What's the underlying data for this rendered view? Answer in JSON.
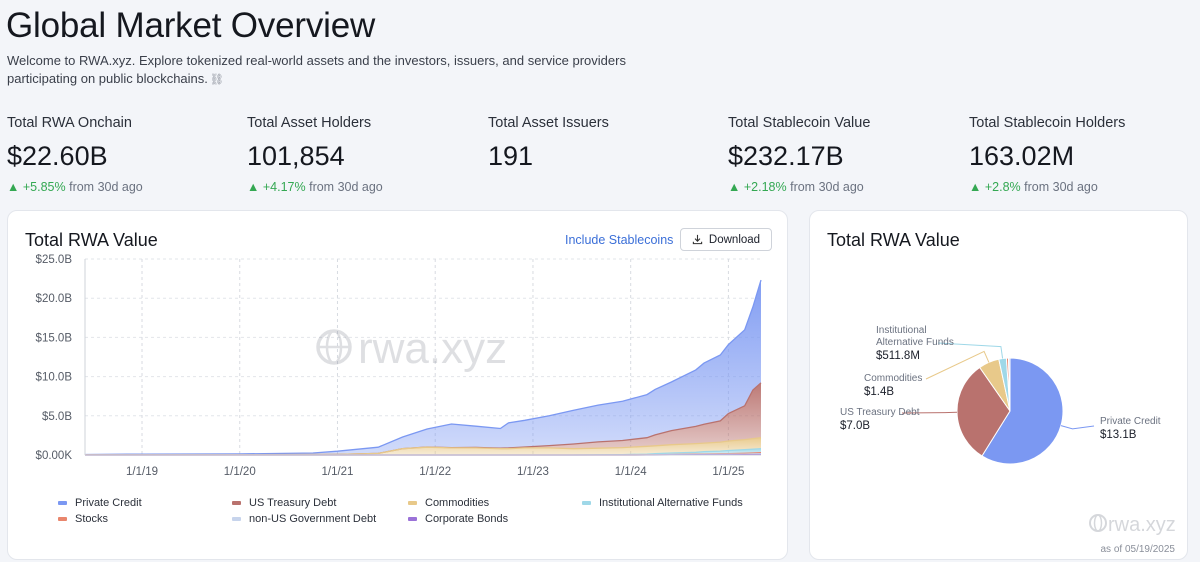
{
  "header": {
    "title": "Global Market Overview",
    "intro": "Welcome to RWA.xyz. Explore tokenized real-world assets and the investors, issuers, and service providers participating on public blockchains."
  },
  "stats": [
    {
      "label": "Total RWA Onchain",
      "value": "$22.60B",
      "change": "+5.85%",
      "suffix": "from 30d ago"
    },
    {
      "label": "Total Asset Holders",
      "value": "101,854",
      "change": "+4.17%",
      "suffix": "from 30d ago"
    },
    {
      "label": "Total Asset Issuers",
      "value": "191",
      "change": "",
      "suffix": ""
    },
    {
      "label": "Total Stablecoin Value",
      "value": "$232.17B",
      "change": "+2.18%",
      "suffix": "from 30d ago"
    },
    {
      "label": "Total Stablecoin Holders",
      "value": "163.02M",
      "change": "+2.8%",
      "suffix": "from 30d ago"
    }
  ],
  "area_card": {
    "title": "Total RWA Value",
    "include_label": "Include Stablecoins",
    "download_label": "Download",
    "watermark": "rwa.xyz"
  },
  "pie_card": {
    "title": "Total RWA Value",
    "watermark": "rwa.xyz",
    "as_of": "as of 05/19/2025"
  },
  "colors": {
    "private_credit": "#7b98f2",
    "us_treasury": "#b9726e",
    "commodities": "#e8c98a",
    "alt_funds": "#9fd8e8",
    "stocks": "#e9866d",
    "non_us_gov": "#c7d4ec",
    "corp_bonds": "#9b72d8",
    "up": "#34a853"
  },
  "chart_data": [
    {
      "type": "area",
      "title": "Total RWA Value",
      "stacked": true,
      "y_ticks": [
        "$0.00K",
        "$5.0B",
        "$10.0B",
        "$15.0B",
        "$20.0B",
        "$25.0B"
      ],
      "ylim": [
        0,
        25
      ],
      "x_ticks": [
        "1/1/19",
        "1/1/20",
        "1/1/21",
        "1/1/22",
        "1/1/23",
        "1/1/24",
        "1/1/25"
      ],
      "x": [
        "2018-06",
        "2019-01",
        "2020-01",
        "2020-10",
        "2021-01",
        "2021-06",
        "2021-09",
        "2021-12",
        "2022-03",
        "2022-06",
        "2022-09",
        "2022-10",
        "2022-12",
        "2023-03",
        "2023-06",
        "2023-09",
        "2023-12",
        "2024-03",
        "2024-04",
        "2024-06",
        "2024-09",
        "2024-10",
        "2024-12",
        "2025-01",
        "2025-03",
        "2025-04",
        "2025-05"
      ],
      "grid": true,
      "legend": "bottom",
      "series": [
        {
          "name": "Private Credit",
          "color": "#7b98f2",
          "values": [
            0.05,
            0.08,
            0.1,
            0.2,
            0.4,
            0.8,
            1.5,
            2.3,
            3.0,
            2.7,
            2.5,
            3.2,
            3.4,
            3.8,
            4.3,
            4.7,
            5.0,
            5.5,
            5.8,
            6.2,
            7.2,
            7.8,
            8.4,
            8.8,
            9.7,
            10.6,
            13.1
          ]
        },
        {
          "name": "US Treasury Debt",
          "color": "#b9726e",
          "values": [
            0,
            0,
            0,
            0,
            0,
            0,
            0,
            0.02,
            0.05,
            0.07,
            0.08,
            0.1,
            0.12,
            0.3,
            0.6,
            0.8,
            0.9,
            1.1,
            1.4,
            1.8,
            2.2,
            2.4,
            2.7,
            3.5,
            4.3,
            6.2,
            7.0
          ]
        },
        {
          "name": "Commodities",
          "color": "#e8c98a",
          "values": [
            0.02,
            0.03,
            0.04,
            0.06,
            0.08,
            0.2,
            0.8,
            1.0,
            0.9,
            0.9,
            0.8,
            0.8,
            0.9,
            0.9,
            0.8,
            0.85,
            0.9,
            1.0,
            1.0,
            1.05,
            1.1,
            1.1,
            1.15,
            1.2,
            1.3,
            1.35,
            1.4
          ]
        },
        {
          "name": "Institutional Alternative Funds",
          "color": "#9fd8e8",
          "values": [
            0,
            0,
            0,
            0,
            0,
            0,
            0,
            0,
            0,
            0,
            0,
            0,
            0,
            0,
            0,
            0.02,
            0.05,
            0.1,
            0.15,
            0.2,
            0.25,
            0.3,
            0.35,
            0.4,
            0.45,
            0.48,
            0.51
          ]
        },
        {
          "name": "Stocks",
          "color": "#e9866d",
          "values": [
            0,
            0,
            0,
            0,
            0,
            0,
            0,
            0,
            0,
            0,
            0,
            0,
            0,
            0,
            0,
            0,
            0,
            0,
            0,
            0.02,
            0.04,
            0.05,
            0.06,
            0.08,
            0.1,
            0.12,
            0.14
          ]
        },
        {
          "name": "non-US Government Debt",
          "color": "#c7d4ec",
          "values": [
            0,
            0,
            0,
            0,
            0,
            0,
            0,
            0,
            0,
            0,
            0,
            0,
            0,
            0,
            0,
            0,
            0,
            0.01,
            0.02,
            0.03,
            0.04,
            0.05,
            0.06,
            0.07,
            0.08,
            0.09,
            0.1
          ]
        },
        {
          "name": "Corporate Bonds",
          "color": "#9b72d8",
          "values": [
            0,
            0,
            0,
            0,
            0,
            0,
            0,
            0,
            0,
            0,
            0,
            0,
            0,
            0,
            0,
            0,
            0,
            0,
            0,
            0.01,
            0.02,
            0.02,
            0.03,
            0.03,
            0.04,
            0.05,
            0.06
          ]
        }
      ]
    },
    {
      "type": "pie",
      "title": "Total RWA Value",
      "slices": [
        {
          "name": "Private Credit",
          "label": "$13.1B",
          "value": 13.1,
          "color": "#7b98f2"
        },
        {
          "name": "US Treasury Debt",
          "label": "$7.0B",
          "value": 7.0,
          "color": "#b9726e"
        },
        {
          "name": "Commodities",
          "label": "$1.4B",
          "value": 1.4,
          "color": "#e8c98a"
        },
        {
          "name": "Institutional Alternative Funds",
          "label": "$511.8M",
          "value": 0.5118,
          "color": "#9fd8e8"
        },
        {
          "name": "Stocks",
          "label": "",
          "value": 0.14,
          "color": "#e9866d"
        },
        {
          "name": "non-US Government Debt",
          "label": "",
          "value": 0.1,
          "color": "#c7d4ec"
        }
      ]
    }
  ]
}
